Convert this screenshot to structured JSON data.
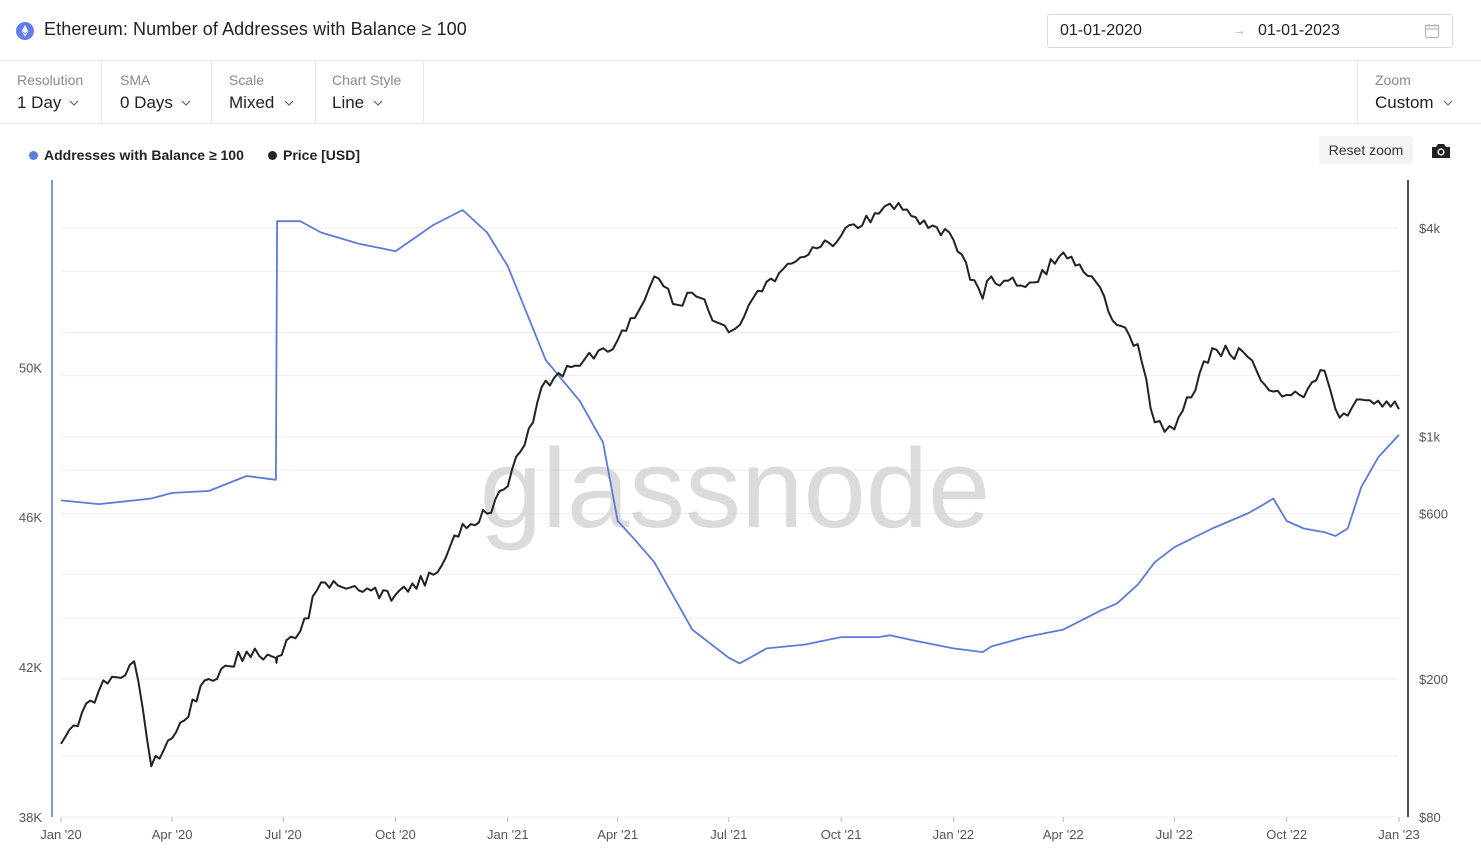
{
  "header": {
    "title": "Ethereum: Number of Addresses with Balance ≥ 100",
    "date_from": "01-01-2020",
    "date_arrow": "→",
    "date_to": "01-01-2023"
  },
  "controls": {
    "resolution": {
      "label": "Resolution",
      "value": "1 Day"
    },
    "sma": {
      "label": "SMA",
      "value": "0 Days"
    },
    "scale": {
      "label": "Scale",
      "value": "Mixed"
    },
    "chart_style": {
      "label": "Chart Style",
      "value": "Line"
    },
    "zoom": {
      "label": "Zoom",
      "value": "Custom"
    }
  },
  "toolbar": {
    "reset_zoom": "Reset zoom"
  },
  "watermark": "glassnode",
  "chart_data": {
    "type": "line",
    "x_ticks": [
      "Jan '20",
      "Apr '20",
      "Jul '20",
      "Oct '20",
      "Jan '21",
      "Apr '21",
      "Jul '21",
      "Oct '21",
      "Jan '22",
      "Apr '22",
      "Jul '22",
      "Oct '22",
      "Jan '23"
    ],
    "left_axis": {
      "ticks": [
        "38K",
        "42K",
        "46K",
        "50K"
      ],
      "tick_values": [
        38000,
        42000,
        46000,
        50000
      ],
      "ylim": [
        38000,
        55000
      ]
    },
    "right_axis": {
      "scale": "log",
      "ticks": [
        "$80",
        "$200",
        "$600",
        "$1k",
        "$4k"
      ],
      "tick_values": [
        80,
        200,
        600,
        1000,
        4000
      ],
      "ylim": [
        80,
        5500
      ]
    },
    "grid": true,
    "legend": "top-left",
    "x": [
      "2020-01-01",
      "2020-02-01",
      "2020-03-01",
      "2020-03-15",
      "2020-04-01",
      "2020-05-01",
      "2020-06-01",
      "2020-06-25",
      "2020-06-26",
      "2020-07-15",
      "2020-08-01",
      "2020-09-01",
      "2020-10-01",
      "2020-11-01",
      "2020-11-25",
      "2020-12-15",
      "2021-01-01",
      "2021-02-01",
      "2021-03-01",
      "2021-03-20",
      "2021-04-01",
      "2021-04-15",
      "2021-05-01",
      "2021-05-20",
      "2021-06-01",
      "2021-07-01",
      "2021-07-10",
      "2021-08-01",
      "2021-09-01",
      "2021-10-01",
      "2021-11-01",
      "2021-11-10",
      "2021-12-01",
      "2022-01-01",
      "2022-01-25",
      "2022-02-01",
      "2022-03-01",
      "2022-04-01",
      "2022-05-01",
      "2022-05-15",
      "2022-06-01",
      "2022-06-15",
      "2022-07-01",
      "2022-08-01",
      "2022-08-30",
      "2022-09-10",
      "2022-09-20",
      "2022-10-01",
      "2022-10-15",
      "2022-11-01",
      "2022-11-10",
      "2022-11-20",
      "2022-12-01",
      "2022-12-15",
      "2023-01-01"
    ],
    "series": [
      {
        "name": "Addresses with Balance ≥ 100",
        "color": "#5b7bdc",
        "axis": "left",
        "values": [
          46450,
          46350,
          46450,
          46500,
          46650,
          46700,
          47100,
          47000,
          53900,
          53900,
          53600,
          53300,
          53100,
          53800,
          54200,
          53600,
          52700,
          50200,
          49100,
          48000,
          45900,
          45400,
          44800,
          43700,
          43000,
          42250,
          42100,
          42500,
          42600,
          42800,
          42800,
          42850,
          42700,
          42500,
          42400,
          42550,
          42800,
          43000,
          43500,
          43700,
          44200,
          44800,
          45200,
          45700,
          46100,
          46300,
          46500,
          45900,
          45700,
          45600,
          45500,
          45700,
          46800,
          47600,
          48200
        ]
      },
      {
        "name": "Price [USD]",
        "color": "#222222",
        "axis": "right",
        "values": [
          130,
          185,
          225,
          112,
          135,
          200,
          240,
          230,
          232,
          275,
          380,
          360,
          350,
          400,
          560,
          600,
          720,
          1450,
          1600,
          1800,
          1900,
          2200,
          2900,
          2400,
          2600,
          2000,
          2100,
          2800,
          3300,
          3800,
          4400,
          4700,
          4300,
          3700,
          2500,
          2900,
          2700,
          3400,
          2700,
          2100,
          1850,
          1100,
          1050,
          1800,
          1700,
          1450,
          1350,
          1320,
          1300,
          1550,
          1200,
          1150,
          1280,
          1270,
          1200
        ]
      }
    ]
  }
}
